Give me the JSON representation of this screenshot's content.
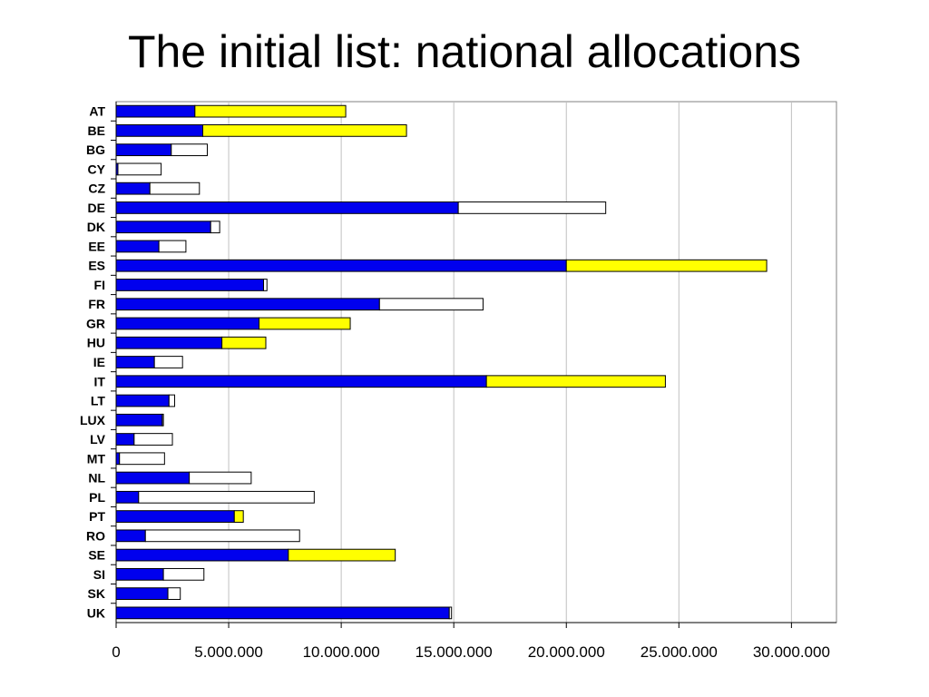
{
  "slide": {
    "title": "The initial list: national allocations"
  },
  "chart_data": {
    "type": "bar",
    "orientation": "horizontal",
    "stacked": true,
    "title": "The initial list: national allocations",
    "xlabel": "",
    "ylabel": "",
    "xlim": [
      0,
      32000000
    ],
    "grid": true,
    "legend": "none",
    "categories": [
      "AT",
      "BE",
      "BG",
      "CY",
      "CZ",
      "DE",
      "DK",
      "EE",
      "ES",
      "FI",
      "FR",
      "GR",
      "HU",
      "IE",
      "IT",
      "LT",
      "LUX",
      "LV",
      "MT",
      "NL",
      "PL",
      "PT",
      "RO",
      "SE",
      "SI",
      "SK",
      "UK"
    ],
    "x_tick_labels": [
      "0",
      "5.000.000",
      "10.000.000",
      "15.000.000",
      "20.000.000",
      "25.000.000",
      "30.000.000"
    ],
    "x_ticks": [
      0,
      5000000,
      10000000,
      15000000,
      20000000,
      25000000,
      30000000
    ],
    "series": [
      {
        "color": "#0000ee",
        "values": [
          3500000,
          3850000,
          2450000,
          80000,
          1500000,
          15200000,
          4200000,
          1900000,
          20000000,
          6550000,
          11700000,
          6350000,
          4700000,
          1700000,
          16450000,
          2350000,
          2050000,
          800000,
          150000,
          3250000,
          1000000,
          5250000,
          1300000,
          7650000,
          2100000,
          2300000,
          14800000
        ]
      },
      {
        "color": "#ffff00",
        "values": [
          6700000,
          9050000,
          0,
          0,
          0,
          0,
          0,
          0,
          8900000,
          0,
          0,
          4050000,
          1950000,
          0,
          7950000,
          0,
          0,
          0,
          0,
          0,
          0,
          400000,
          0,
          4750000,
          0,
          0,
          0
        ]
      },
      {
        "color": "#ffffff",
        "values": [
          0,
          0,
          1600000,
          1920000,
          2200000,
          6550000,
          400000,
          1200000,
          0,
          150000,
          4600000,
          0,
          0,
          1250000,
          0,
          250000,
          50000,
          1700000,
          2000000,
          2750000,
          7800000,
          0,
          6850000,
          0,
          1800000,
          550000,
          100000
        ]
      }
    ]
  }
}
